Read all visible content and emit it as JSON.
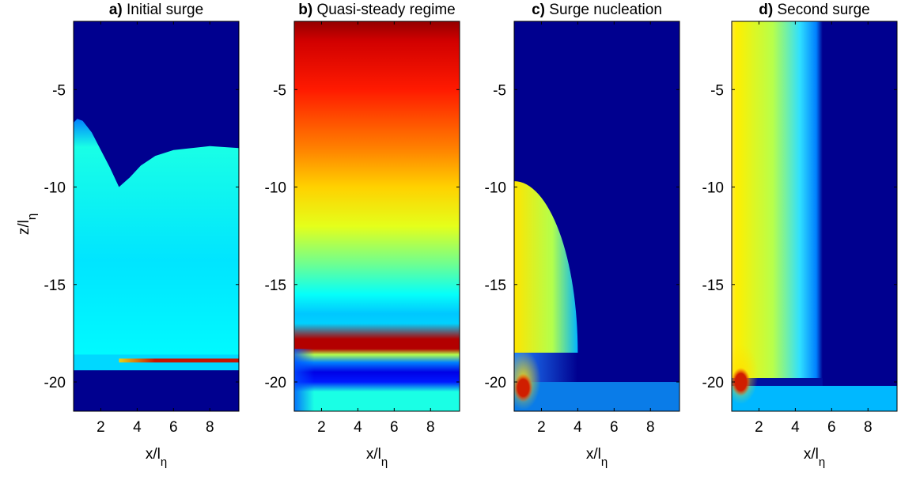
{
  "chart_data": [
    {
      "type": "heatmap",
      "panel_letter": "a)",
      "title": "Initial surge",
      "xlabel": "x/lη",
      "ylabel": "z/lη",
      "xlim": [
        0.5,
        9.6
      ],
      "ylim": [
        -21.5,
        -1.5
      ],
      "x_ticks": [
        2,
        4,
        6,
        8
      ],
      "y_ticks": [
        -5,
        -10,
        -15,
        -20
      ],
      "colormap": "jet",
      "background_color": "#00008f",
      "regions": [
        {
          "shape": "band",
          "y_from": -18.6,
          "y_to": -19.4,
          "x_from": 0.5,
          "x_to": 9.6,
          "level": 0.4,
          "color": "#00d8ff"
        },
        {
          "shape": "band",
          "y_from": -18.8,
          "y_to": -19.0,
          "x_from": 3.0,
          "x_to": 9.6,
          "level": 0.95,
          "color": "#c81400"
        },
        {
          "shape": "profile",
          "x": [
            0.5,
            0.7,
            1.0,
            1.5,
            2.0,
            2.5,
            3.0,
            3.6,
            4.2,
            5.0,
            6.0,
            7.0,
            8.0,
            9.6
          ],
          "z_top": [
            -6.7,
            -6.5,
            -6.6,
            -7.2,
            -8.1,
            -9.0,
            -10.0,
            -9.5,
            -8.9,
            -8.4,
            -8.1,
            -8.0,
            -7.9,
            -8.0
          ],
          "z_bottom": -18.6,
          "level": 0.35,
          "color": "#0a8ff0"
        }
      ]
    },
    {
      "type": "heatmap",
      "panel_letter": "b)",
      "title": "Quasi-steady regime",
      "xlabel": "x/lη",
      "ylabel": "",
      "xlim": [
        0.5,
        9.6
      ],
      "ylim": [
        -21.5,
        -1.5
      ],
      "x_ticks": [
        2,
        4,
        6,
        8
      ],
      "y_ticks": [
        -5,
        -10,
        -15,
        -20
      ],
      "colormap": "jet",
      "vertical_profile": {
        "z": [
          -1.5,
          -2.5,
          -5.0,
          -8.0,
          -10.0,
          -12.0,
          -14.0,
          -15.5,
          -16.5,
          -17.0,
          -17.8,
          -18.3,
          -18.6,
          -19.0,
          -19.5,
          -20.0,
          -20.5,
          -21.5
        ],
        "level": [
          0.98,
          0.92,
          0.85,
          0.75,
          0.67,
          0.6,
          0.48,
          0.38,
          0.32,
          0.33,
          0.95,
          0.95,
          0.55,
          0.25,
          0.1,
          0.15,
          0.4,
          0.4
        ]
      }
    },
    {
      "type": "heatmap",
      "panel_letter": "c)",
      "title": "Surge nucleation",
      "xlabel": "x/lη",
      "ylabel": "",
      "xlim": [
        0.5,
        9.6
      ],
      "ylim": [
        -21.5,
        -1.5
      ],
      "x_ticks": [
        2,
        4,
        6,
        8
      ],
      "y_ticks": [
        -5,
        -10,
        -15,
        -20
      ],
      "colormap": "jet",
      "background_color": "#00008f",
      "regions": [
        {
          "shape": "quarter-ellipse",
          "x_max": 4.0,
          "z_top": -9.7,
          "z_bottom": -18.5,
          "level_inner": 0.55,
          "level_outer": 0.3
        },
        {
          "shape": "band",
          "y_from": -20.0,
          "y_to": -21.5,
          "x_from": 0.5,
          "x_to": 9.6,
          "level": 0.3,
          "color": "#0a7ce8"
        },
        {
          "shape": "hotspot",
          "x": 1.0,
          "z": -20.3,
          "level": 1.0,
          "color": "#d01e00"
        }
      ]
    },
    {
      "type": "heatmap",
      "panel_letter": "d)",
      "title": "Second surge",
      "xlabel": "x/lη",
      "ylabel": "",
      "xlim": [
        0.5,
        9.6
      ],
      "ylim": [
        -21.5,
        -1.5
      ],
      "x_ticks": [
        2,
        4,
        6,
        8
      ],
      "y_ticks": [
        -5,
        -10,
        -15,
        -20
      ],
      "colormap": "jet",
      "background_color": "#00008f",
      "regions": [
        {
          "shape": "front",
          "x_front": 5.5,
          "z_top": -1.5,
          "z_bottom": -19.8,
          "level_left": 0.7,
          "level_right": 0.35
        },
        {
          "shape": "band",
          "y_from": -20.2,
          "y_to": -21.5,
          "x_from": 0.5,
          "x_to": 9.6,
          "level": 0.35,
          "color": "#00b8ff"
        },
        {
          "shape": "hotspot",
          "x": 1.0,
          "z": -20.0,
          "level": 1.0,
          "color": "#d01e00"
        }
      ]
    }
  ]
}
